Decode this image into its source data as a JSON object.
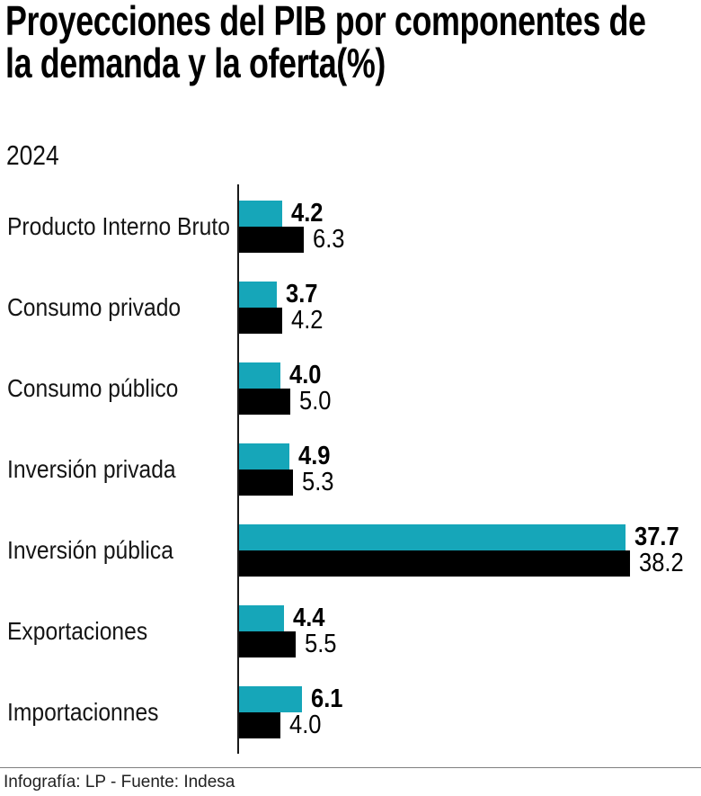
{
  "title": "Proyecciones del PIB por componentes de la demanda y la oferta(%)",
  "title_lines": [
    "Proyecciones del PIB por componentes de",
    "la demanda y la oferta(%)"
  ],
  "year_label": "2024",
  "footer": "Infografía: LP - Fuente: Indesa",
  "colors": {
    "teal": "#16A6B9",
    "black": "#000000",
    "axis": "#1a1a1a"
  },
  "chart_data": {
    "type": "bar",
    "orientation": "horizontal",
    "title": "Proyecciones del PIB por componentes de la demanda y la oferta(%)",
    "subtitle": "2024",
    "xlabel": "",
    "ylabel": "",
    "xlim": [
      0,
      40
    ],
    "grid": false,
    "legend": "none",
    "categories": [
      "Producto Interno Bruto",
      "Consumo privado",
      "Consumo público",
      "Inversión privada",
      "Inversión pública",
      "Exportaciones",
      "Importacionnes"
    ],
    "series": [
      {
        "name": "teal",
        "color": "#16A6B9",
        "values": [
          4.2,
          3.7,
          4.0,
          4.9,
          37.7,
          4.4,
          6.1
        ]
      },
      {
        "name": "black",
        "color": "#000000",
        "values": [
          6.3,
          4.2,
          5.0,
          5.3,
          38.2,
          5.5,
          4.0
        ]
      }
    ]
  }
}
